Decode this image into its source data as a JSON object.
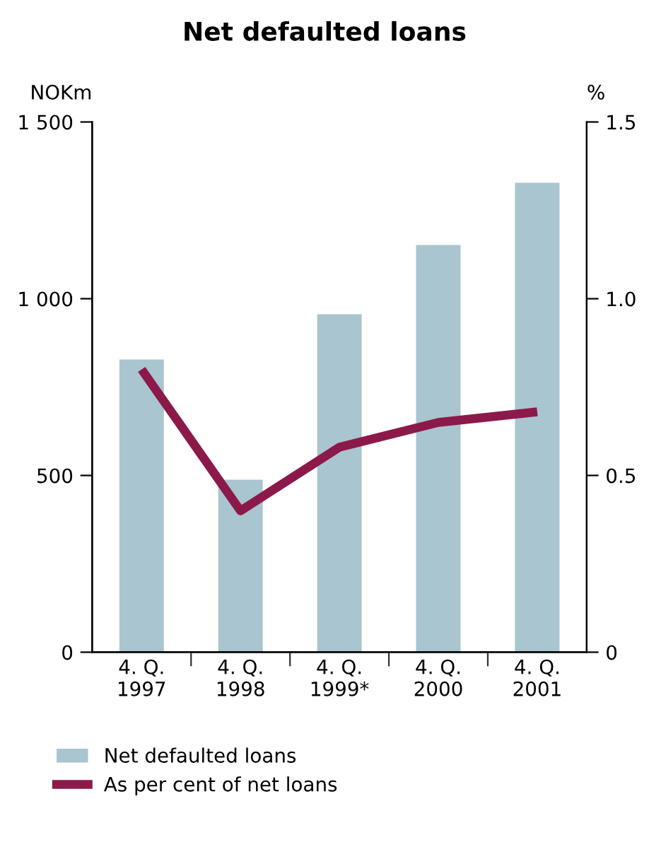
{
  "chart_data": {
    "type": "bar",
    "title": "Net defaulted loans",
    "ylabel": "NOKm",
    "y2label": "%",
    "categories": [
      "4. Q.\n1997",
      "4. Q.\n1998",
      "4. Q.\n1999*",
      "4. Q.\n2000",
      "4. Q.\n2001"
    ],
    "series": [
      {
        "name": "Net defaulted loans",
        "color": "#a9c5cf",
        "values": [
          828,
          488,
          956,
          1152,
          1328
        ]
      },
      {
        "name": "As per cent of net loans",
        "type": "line",
        "axis": "y2",
        "color": "#8b1a4a",
        "values": [
          0.8,
          0.4,
          0.58,
          0.65,
          0.68
        ]
      }
    ],
    "ylim": [
      0,
      1500
    ],
    "yticks": [
      0,
      500,
      {
        "value": 1000,
        "label": "1 000"
      },
      {
        "value": 1500,
        "label": "1 500"
      }
    ],
    "y2lim": [
      0,
      1.5
    ],
    "y2ticks": [
      0,
      {
        "value": 0.5,
        "label": "0.5"
      },
      {
        "value": 1.0,
        "label": "1.0"
      },
      {
        "value": 1.5,
        "label": "1.5"
      }
    ],
    "grid": false,
    "legend": "bottom",
    "marker": "none",
    "line_style": "solid"
  }
}
